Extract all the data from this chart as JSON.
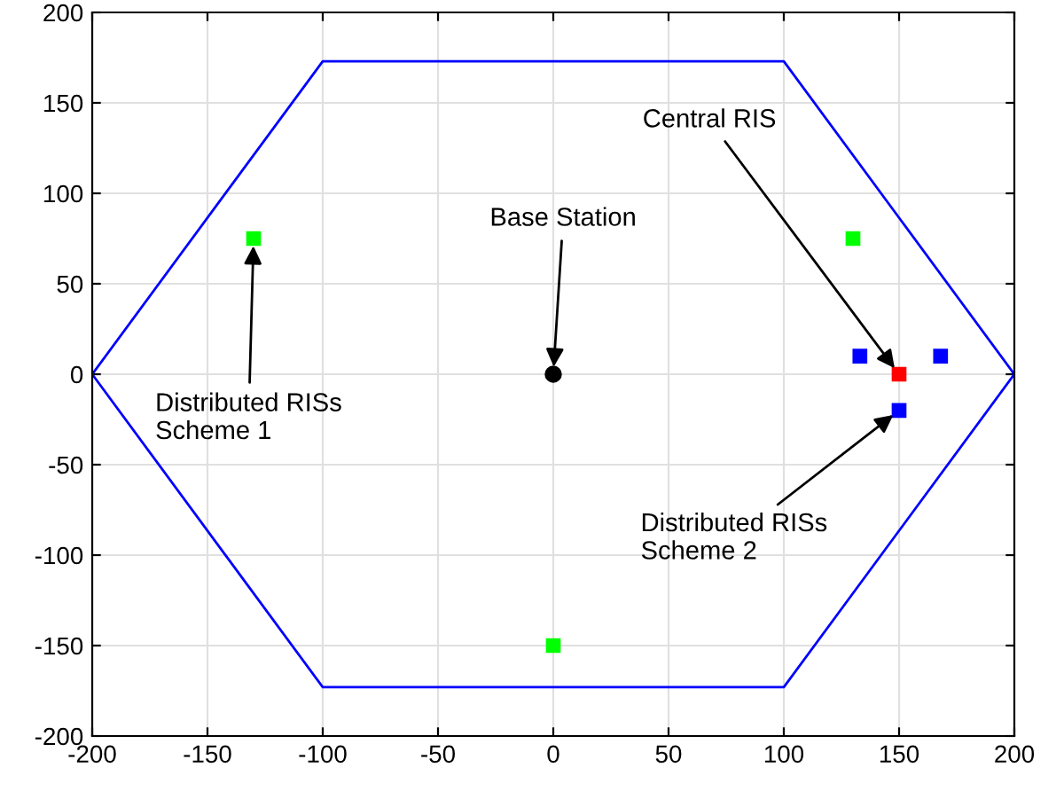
{
  "chart_data": {
    "type": "scatter",
    "xlim": [
      -200,
      200
    ],
    "ylim": [
      -200,
      200
    ],
    "xticks": [
      -200,
      -150,
      -100,
      -50,
      0,
      50,
      100,
      150,
      200
    ],
    "yticks": [
      -200,
      -150,
      -100,
      -50,
      0,
      50,
      100,
      150,
      200
    ],
    "grid": true,
    "legend": false,
    "series": [
      {
        "type": "line",
        "color": "#0000ff",
        "marker": "none",
        "line_style": "solid",
        "x": [
          -200,
          -100,
          100,
          200
        ],
        "values": [
          0,
          173,
          173,
          0
        ]
      },
      {
        "type": "line",
        "color": "#0000ff",
        "marker": "none",
        "line_style": "solid",
        "x": [
          -200,
          -100,
          100,
          200
        ],
        "values": [
          0,
          -173,
          -173,
          0
        ]
      },
      {
        "color": "#00ff00",
        "marker": "square",
        "x": [
          -130,
          130,
          0
        ],
        "values": [
          75,
          75,
          -150
        ]
      },
      {
        "color": "#0000ff",
        "marker": "square",
        "x": [
          133,
          168,
          150
        ],
        "values": [
          10,
          10,
          -20
        ]
      },
      {
        "color": "#ff0000",
        "marker": "square",
        "x": [
          150
        ],
        "values": [
          0
        ]
      },
      {
        "color": "#000000",
        "marker": "circle",
        "x": [
          0
        ],
        "values": [
          0
        ]
      }
    ],
    "annotations": [
      {
        "text": "Central RIS",
        "x": 150,
        "y": 0
      },
      {
        "text": "Base Station",
        "x": 0,
        "y": 0
      },
      {
        "text": "Distributed RISs\nScheme 1",
        "x": -130,
        "y": 75
      },
      {
        "text": "Distributed RISs\nScheme 2",
        "x": 150,
        "y": -20
      }
    ]
  }
}
